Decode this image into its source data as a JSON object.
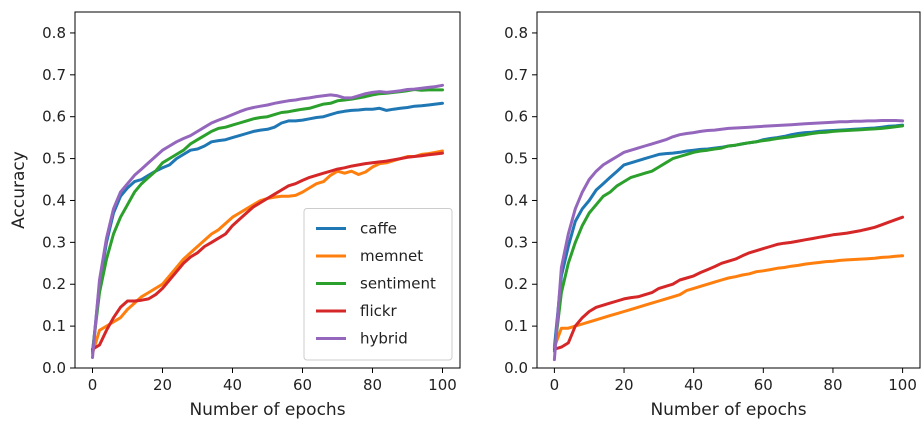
{
  "chart_data": [
    {
      "type": "line",
      "title": "",
      "xlabel": "Number of epochs",
      "ylabel": "Accuracy",
      "xlim": [
        -5,
        105
      ],
      "ylim": [
        0.0,
        0.85
      ],
      "xticks": [
        0,
        20,
        40,
        60,
        80,
        100
      ],
      "yticks": [
        0.0,
        0.1,
        0.2,
        0.3,
        0.4,
        0.5,
        0.6,
        0.7,
        0.8
      ],
      "tick_labels_x": [
        "0",
        "20",
        "40",
        "60",
        "80",
        "100"
      ],
      "tick_labels_y": [
        "0.0",
        "0.1",
        "0.2",
        "0.3",
        "0.4",
        "0.5",
        "0.6",
        "0.7",
        "0.8"
      ],
      "grid": false,
      "legend": {
        "position": "lower-right",
        "entries": [
          "caffe",
          "memnet",
          "sentiment",
          "flickr",
          "hybrid"
        ]
      },
      "x": [
        0,
        2,
        4,
        6,
        8,
        10,
        12,
        14,
        16,
        18,
        20,
        22,
        24,
        26,
        28,
        30,
        32,
        34,
        36,
        38,
        40,
        42,
        44,
        46,
        48,
        50,
        52,
        54,
        56,
        58,
        60,
        62,
        64,
        66,
        68,
        70,
        72,
        74,
        76,
        78,
        80,
        82,
        84,
        86,
        88,
        90,
        92,
        94,
        96,
        98,
        100
      ],
      "series": [
        {
          "name": "caffe",
          "color": "#1f77b4",
          "values": [
            0.035,
            0.2,
            0.3,
            0.37,
            0.41,
            0.43,
            0.445,
            0.45,
            0.46,
            0.47,
            0.478,
            0.485,
            0.5,
            0.51,
            0.52,
            0.523,
            0.53,
            0.54,
            0.543,
            0.545,
            0.55,
            0.555,
            0.56,
            0.565,
            0.568,
            0.57,
            0.575,
            0.585,
            0.59,
            0.59,
            0.592,
            0.595,
            0.598,
            0.6,
            0.605,
            0.61,
            0.613,
            0.615,
            0.616,
            0.618,
            0.618,
            0.62,
            0.615,
            0.618,
            0.62,
            0.622,
            0.625,
            0.626,
            0.628,
            0.63,
            0.632
          ]
        },
        {
          "name": "memnet",
          "color": "#ff7f0e",
          "values": [
            0.035,
            0.09,
            0.1,
            0.11,
            0.12,
            0.14,
            0.155,
            0.17,
            0.18,
            0.19,
            0.2,
            0.22,
            0.24,
            0.26,
            0.275,
            0.29,
            0.305,
            0.32,
            0.33,
            0.345,
            0.36,
            0.37,
            0.38,
            0.39,
            0.4,
            0.405,
            0.408,
            0.41,
            0.41,
            0.412,
            0.42,
            0.43,
            0.44,
            0.445,
            0.46,
            0.47,
            0.465,
            0.47,
            0.462,
            0.468,
            0.48,
            0.488,
            0.49,
            0.495,
            0.5,
            0.505,
            0.505,
            0.51,
            0.512,
            0.515,
            0.518
          ]
        },
        {
          "name": "sentiment",
          "color": "#2ca02c",
          "values": [
            0.04,
            0.18,
            0.26,
            0.32,
            0.36,
            0.39,
            0.42,
            0.44,
            0.455,
            0.47,
            0.49,
            0.5,
            0.51,
            0.52,
            0.535,
            0.545,
            0.555,
            0.565,
            0.572,
            0.575,
            0.58,
            0.585,
            0.59,
            0.595,
            0.598,
            0.6,
            0.605,
            0.61,
            0.612,
            0.615,
            0.618,
            0.62,
            0.625,
            0.63,
            0.632,
            0.638,
            0.64,
            0.642,
            0.645,
            0.648,
            0.652,
            0.655,
            0.656,
            0.658,
            0.66,
            0.662,
            0.665,
            0.663,
            0.664,
            0.664,
            0.664
          ]
        },
        {
          "name": "flickr",
          "color": "#d62728",
          "values": [
            0.045,
            0.055,
            0.09,
            0.12,
            0.145,
            0.16,
            0.16,
            0.162,
            0.165,
            0.175,
            0.19,
            0.21,
            0.23,
            0.25,
            0.265,
            0.275,
            0.29,
            0.3,
            0.31,
            0.32,
            0.34,
            0.355,
            0.37,
            0.385,
            0.395,
            0.405,
            0.415,
            0.425,
            0.435,
            0.44,
            0.448,
            0.455,
            0.46,
            0.465,
            0.47,
            0.475,
            0.478,
            0.482,
            0.485,
            0.488,
            0.49,
            0.492,
            0.494,
            0.497,
            0.5,
            0.503,
            0.505,
            0.507,
            0.509,
            0.511,
            0.513
          ]
        },
        {
          "name": "hybrid",
          "color": "#9467bd",
          "values": [
            0.025,
            0.21,
            0.31,
            0.38,
            0.42,
            0.44,
            0.46,
            0.475,
            0.49,
            0.505,
            0.52,
            0.53,
            0.54,
            0.548,
            0.555,
            0.565,
            0.575,
            0.585,
            0.592,
            0.598,
            0.605,
            0.612,
            0.618,
            0.622,
            0.625,
            0.628,
            0.632,
            0.635,
            0.638,
            0.64,
            0.643,
            0.645,
            0.648,
            0.65,
            0.652,
            0.65,
            0.645,
            0.645,
            0.65,
            0.655,
            0.658,
            0.66,
            0.658,
            0.66,
            0.662,
            0.665,
            0.666,
            0.668,
            0.67,
            0.672,
            0.675
          ]
        }
      ]
    },
    {
      "type": "line",
      "title": "",
      "xlabel": "Number of epochs",
      "ylabel": "",
      "xlim": [
        -5,
        105
      ],
      "ylim": [
        0.0,
        0.85
      ],
      "xticks": [
        0,
        20,
        40,
        60,
        80,
        100
      ],
      "yticks": [
        0.0,
        0.1,
        0.2,
        0.3,
        0.4,
        0.5,
        0.6,
        0.7,
        0.8
      ],
      "tick_labels_x": [
        "0",
        "20",
        "40",
        "60",
        "80",
        "100"
      ],
      "tick_labels_y": [
        "0.0",
        "0.1",
        "0.2",
        "0.3",
        "0.4",
        "0.5",
        "0.6",
        "0.7",
        "0.8"
      ],
      "grid": false,
      "x": [
        0,
        2,
        4,
        6,
        8,
        10,
        12,
        14,
        16,
        18,
        20,
        22,
        24,
        26,
        28,
        30,
        32,
        34,
        36,
        38,
        40,
        42,
        44,
        46,
        48,
        50,
        52,
        54,
        56,
        58,
        60,
        62,
        64,
        66,
        68,
        70,
        72,
        74,
        76,
        78,
        80,
        82,
        84,
        86,
        88,
        90,
        92,
        94,
        96,
        98,
        100
      ],
      "series": [
        {
          "name": "caffe",
          "color": "#1f77b4",
          "values": [
            0.05,
            0.22,
            0.29,
            0.35,
            0.38,
            0.4,
            0.425,
            0.44,
            0.455,
            0.47,
            0.485,
            0.49,
            0.495,
            0.5,
            0.505,
            0.51,
            0.512,
            0.513,
            0.515,
            0.518,
            0.52,
            0.522,
            0.523,
            0.525,
            0.527,
            0.53,
            0.532,
            0.535,
            0.538,
            0.54,
            0.545,
            0.548,
            0.55,
            0.553,
            0.557,
            0.56,
            0.562,
            0.563,
            0.565,
            0.566,
            0.567,
            0.568,
            0.569,
            0.57,
            0.571,
            0.572,
            0.573,
            0.575,
            0.577,
            0.578,
            0.58
          ]
        },
        {
          "name": "memnet",
          "color": "#ff7f0e",
          "values": [
            0.05,
            0.095,
            0.095,
            0.1,
            0.105,
            0.11,
            0.115,
            0.12,
            0.125,
            0.13,
            0.135,
            0.14,
            0.145,
            0.15,
            0.155,
            0.16,
            0.165,
            0.17,
            0.175,
            0.185,
            0.19,
            0.195,
            0.2,
            0.205,
            0.21,
            0.215,
            0.218,
            0.222,
            0.225,
            0.23,
            0.232,
            0.235,
            0.238,
            0.24,
            0.243,
            0.245,
            0.248,
            0.25,
            0.252,
            0.254,
            0.255,
            0.257,
            0.258,
            0.259,
            0.26,
            0.261,
            0.262,
            0.264,
            0.265,
            0.267,
            0.268
          ]
        },
        {
          "name": "sentiment",
          "color": "#2ca02c",
          "values": [
            0.04,
            0.18,
            0.25,
            0.3,
            0.34,
            0.37,
            0.39,
            0.41,
            0.42,
            0.435,
            0.445,
            0.455,
            0.46,
            0.465,
            0.47,
            0.48,
            0.49,
            0.5,
            0.505,
            0.51,
            0.515,
            0.518,
            0.52,
            0.523,
            0.525,
            0.53,
            0.532,
            0.535,
            0.538,
            0.54,
            0.543,
            0.545,
            0.548,
            0.55,
            0.552,
            0.555,
            0.557,
            0.56,
            0.562,
            0.563,
            0.565,
            0.566,
            0.567,
            0.568,
            0.569,
            0.57,
            0.571,
            0.572,
            0.574,
            0.576,
            0.578
          ]
        },
        {
          "name": "flickr",
          "color": "#d62728",
          "values": [
            0.045,
            0.05,
            0.06,
            0.1,
            0.12,
            0.135,
            0.145,
            0.15,
            0.155,
            0.16,
            0.165,
            0.168,
            0.17,
            0.175,
            0.18,
            0.19,
            0.195,
            0.2,
            0.21,
            0.215,
            0.22,
            0.228,
            0.235,
            0.242,
            0.25,
            0.255,
            0.26,
            0.268,
            0.275,
            0.28,
            0.285,
            0.29,
            0.295,
            0.298,
            0.3,
            0.303,
            0.306,
            0.309,
            0.312,
            0.315,
            0.318,
            0.32,
            0.322,
            0.325,
            0.328,
            0.332,
            0.336,
            0.342,
            0.348,
            0.354,
            0.36
          ]
        },
        {
          "name": "hybrid",
          "color": "#9467bd",
          "values": [
            0.02,
            0.24,
            0.32,
            0.38,
            0.42,
            0.45,
            0.47,
            0.485,
            0.495,
            0.505,
            0.515,
            0.52,
            0.525,
            0.53,
            0.535,
            0.54,
            0.545,
            0.552,
            0.557,
            0.56,
            0.562,
            0.565,
            0.567,
            0.568,
            0.57,
            0.572,
            0.573,
            0.574,
            0.575,
            0.576,
            0.577,
            0.578,
            0.579,
            0.58,
            0.581,
            0.582,
            0.583,
            0.584,
            0.585,
            0.586,
            0.587,
            0.588,
            0.588,
            0.589,
            0.589,
            0.59,
            0.59,
            0.591,
            0.591,
            0.591,
            0.59
          ]
        }
      ]
    }
  ]
}
